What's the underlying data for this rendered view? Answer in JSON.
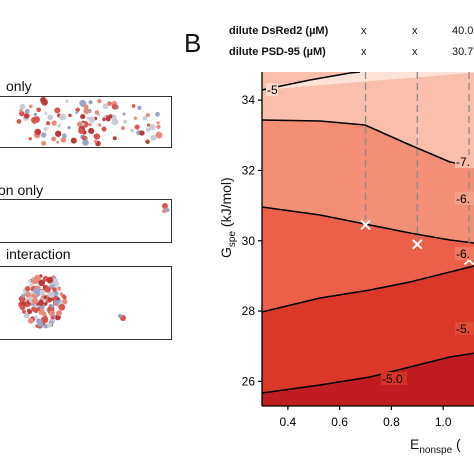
{
  "panel_letter": "B",
  "left_panel": {
    "labels": [
      "only",
      "on only",
      "interaction"
    ]
  },
  "table": {
    "rows": [
      {
        "label": "dilute DsRed2 (µM)",
        "values": [
          "x",
          "x",
          "40.0"
        ]
      },
      {
        "label": "dilute PSD-95  (µM)",
        "values": [
          "x",
          "x",
          "30.7"
        ]
      }
    ]
  },
  "chart_data": {
    "type": "contour",
    "xlabel": "E",
    "xlabel_sub": "nonspe",
    "xlabel_tail": "(",
    "ylabel": "G",
    "ylabel_sub": "spe",
    "ylabel_tail": "(kJ/mol)",
    "xlim": [
      0.3,
      1.15
    ],
    "ylim": [
      25.3,
      34.8
    ],
    "x_ticks": [
      "0.4",
      "0.6",
      "0.8",
      "1.0"
    ],
    "y_ticks": [
      "26",
      "28",
      "30",
      "32",
      "34"
    ],
    "contour_labels": [
      "-5",
      "-7.",
      "-6.",
      "-6.",
      "-5.",
      "-5.0"
    ],
    "band_colors": [
      "#fde2d7",
      "#f9bfaa",
      "#f38f75",
      "#ec6049",
      "#da3829",
      "#c01d20"
    ],
    "markers": [
      {
        "x": 0.7,
        "y": 30.45
      },
      {
        "x": 0.9,
        "y": 29.9
      },
      {
        "x": 1.1,
        "y": 29.45
      }
    ],
    "dashed_verticals_x": [
      0.7,
      0.9,
      1.1
    ]
  }
}
